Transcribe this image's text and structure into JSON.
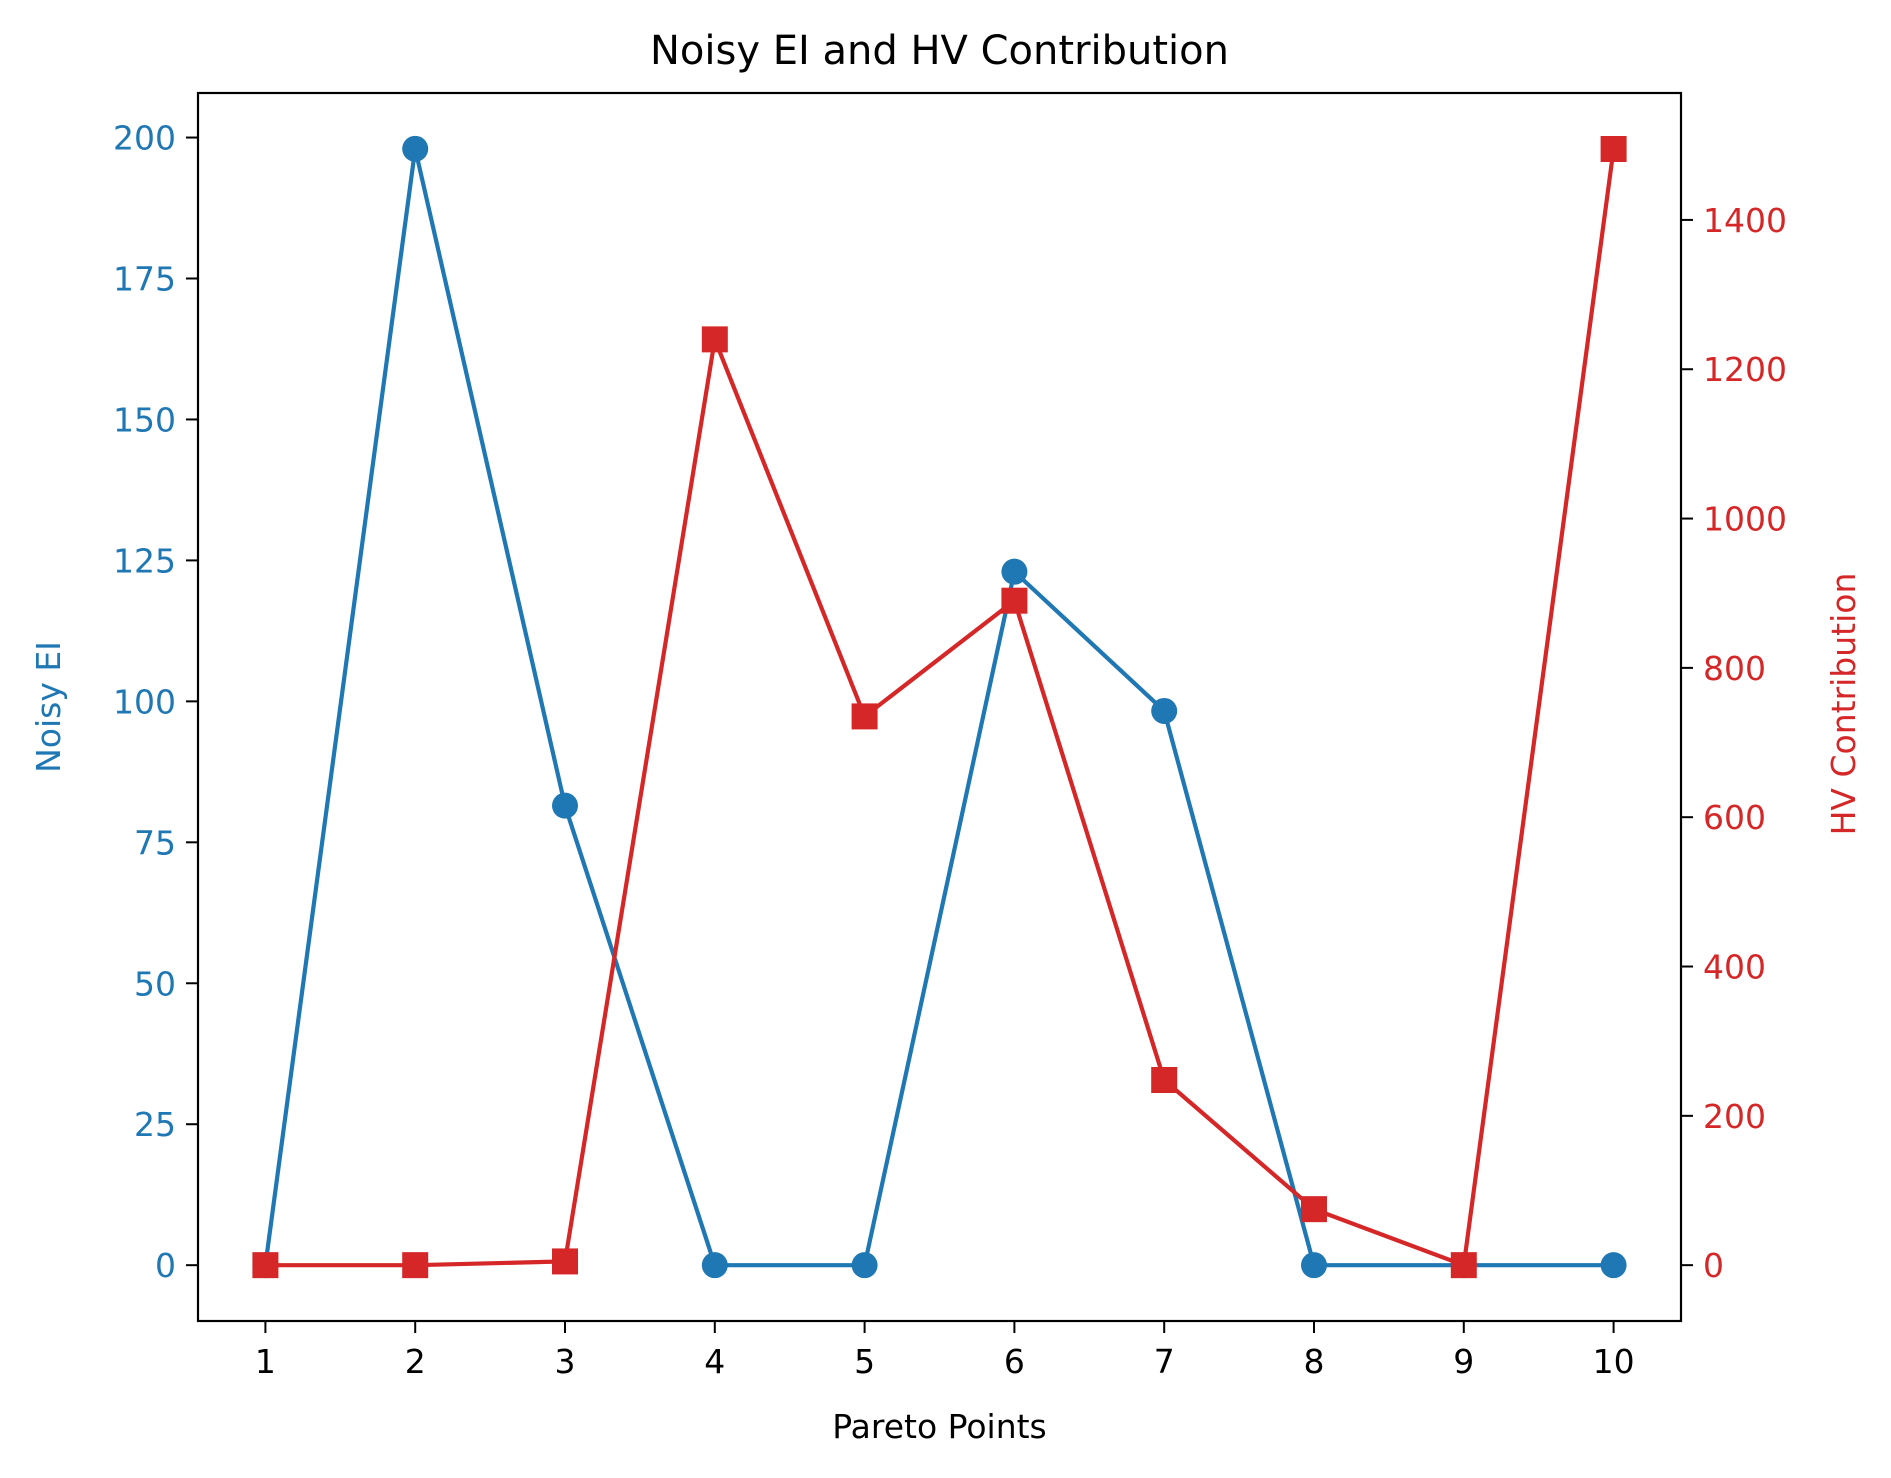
{
  "chart_data": {
    "type": "line",
    "title": "Noisy EI and HV Contribution",
    "xlabel": "Pareto Points",
    "x": [
      1,
      2,
      3,
      4,
      5,
      6,
      7,
      8,
      9,
      10
    ],
    "xticks": [
      "1",
      "2",
      "3",
      "4",
      "5",
      "6",
      "7",
      "8",
      "9",
      "10"
    ],
    "xlim": [
      0.55,
      10.45
    ],
    "y_left": {
      "label": "Noisy EI",
      "color": "#1f77b4",
      "ylim": [
        -9.9,
        207.9
      ],
      "ticks": [
        0,
        25,
        50,
        75,
        100,
        125,
        150,
        175,
        200
      ],
      "tick_labels": [
        "0",
        "25",
        "50",
        "75",
        "100",
        "125",
        "150",
        "175",
        "200"
      ]
    },
    "y_right": {
      "label": "HV Contribution",
      "color": "#d62728",
      "ylim": [
        -74.8,
        1570
      ],
      "ticks": [
        0,
        200,
        400,
        600,
        800,
        1000,
        1200,
        1400
      ],
      "tick_labels": [
        "0",
        "200",
        "400",
        "600",
        "800",
        "1000",
        "1200",
        "1400"
      ]
    },
    "series": [
      {
        "axis": "left",
        "marker": "circle",
        "color": "#1f77b4",
        "values": [
          0,
          198,
          81.5,
          0,
          0,
          123,
          98.3,
          0,
          0,
          0
        ]
      },
      {
        "axis": "right",
        "marker": "square",
        "color": "#d62728",
        "values": [
          0,
          0,
          5,
          1240,
          735,
          890,
          248,
          75,
          0,
          1495
        ]
      }
    ]
  }
}
